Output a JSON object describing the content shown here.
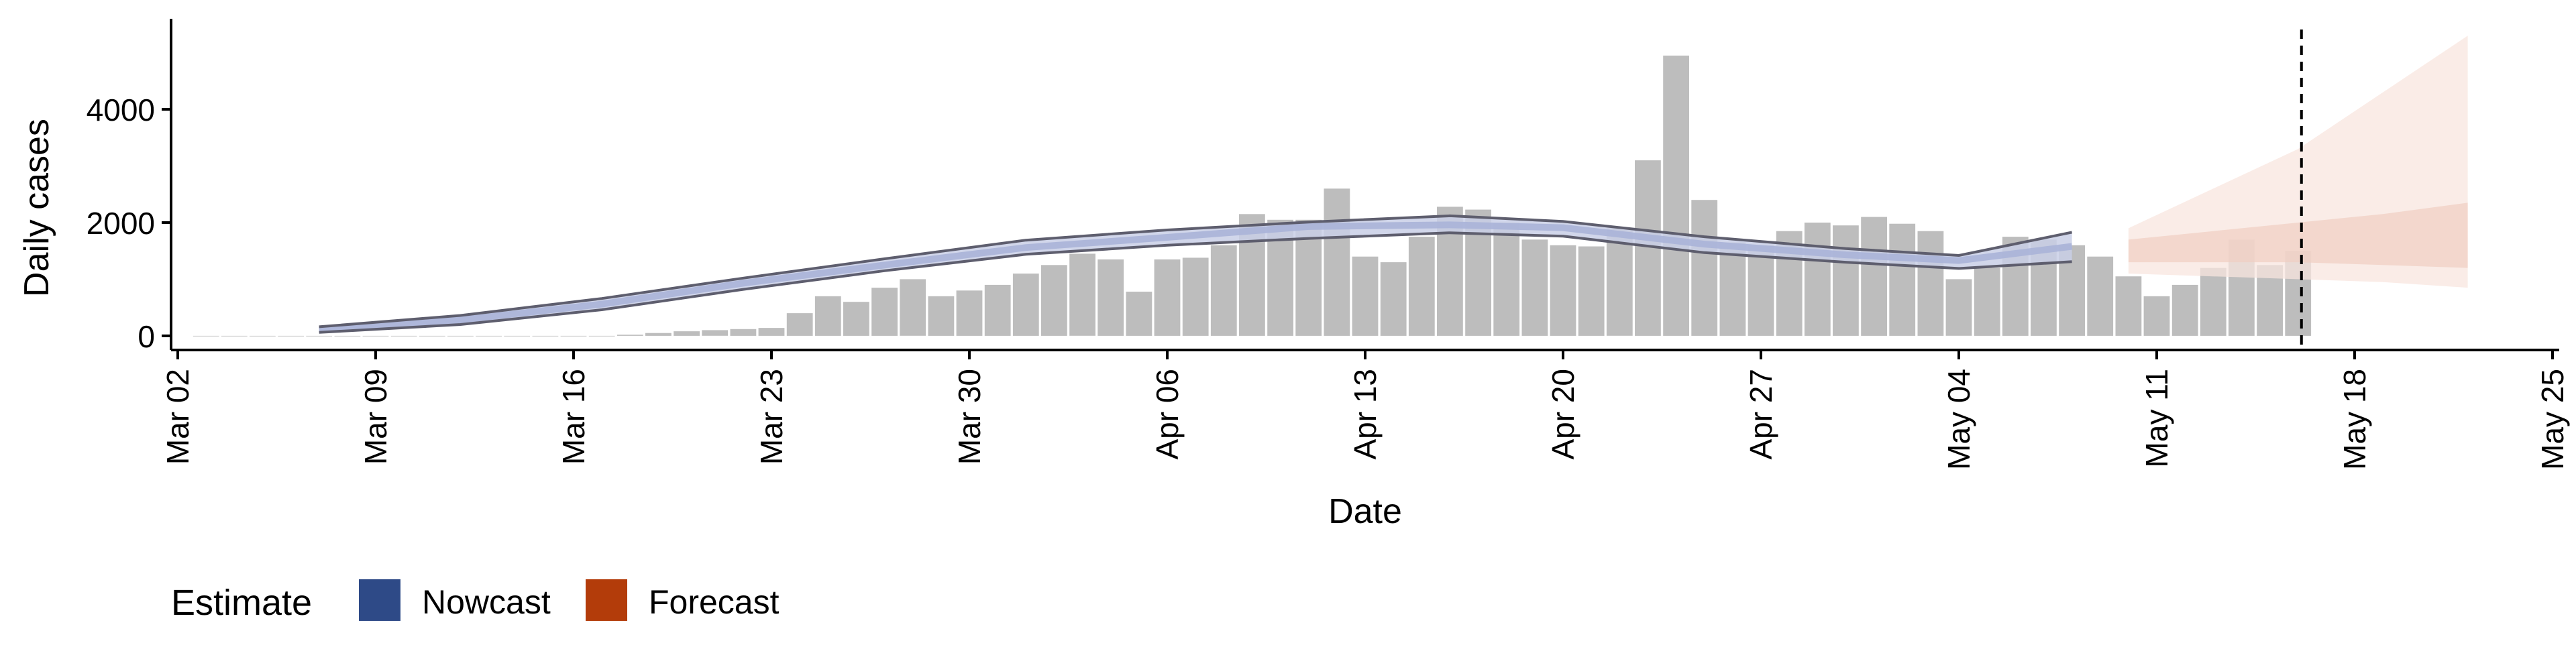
{
  "chart_data": {
    "type": "bar",
    "xlabel": "Date",
    "ylabel": "Daily cases",
    "x_ticks": [
      "Mar 02",
      "Mar 09",
      "Mar 16",
      "Mar 23",
      "Mar 30",
      "Apr 06",
      "Apr 13",
      "Apr 20",
      "Apr 27",
      "May 04",
      "May 11",
      "May 18",
      "May 25"
    ],
    "x_range": [
      "2020-03-02",
      "2020-05-25"
    ],
    "y_ticks": [
      0,
      2000,
      4000
    ],
    "ylim": [
      -250,
      5600
    ],
    "grid": false,
    "bars": {
      "dates": [
        "2020-03-03",
        "2020-03-04",
        "2020-03-05",
        "2020-03-06",
        "2020-03-07",
        "2020-03-08",
        "2020-03-09",
        "2020-03-10",
        "2020-03-11",
        "2020-03-12",
        "2020-03-13",
        "2020-03-14",
        "2020-03-15",
        "2020-03-16",
        "2020-03-17",
        "2020-03-18",
        "2020-03-19",
        "2020-03-20",
        "2020-03-21",
        "2020-03-22",
        "2020-03-23",
        "2020-03-24",
        "2020-03-25",
        "2020-03-26",
        "2020-03-27",
        "2020-03-28",
        "2020-03-29",
        "2020-03-30",
        "2020-03-31",
        "2020-04-01",
        "2020-04-02",
        "2020-04-03",
        "2020-04-04",
        "2020-04-05",
        "2020-04-06",
        "2020-04-07",
        "2020-04-08",
        "2020-04-09",
        "2020-04-10",
        "2020-04-11",
        "2020-04-12",
        "2020-04-13",
        "2020-04-14",
        "2020-04-15",
        "2020-04-16",
        "2020-04-17",
        "2020-04-18",
        "2020-04-19",
        "2020-04-20",
        "2020-04-21",
        "2020-04-22",
        "2020-04-23",
        "2020-04-24",
        "2020-04-25",
        "2020-04-26",
        "2020-04-27",
        "2020-04-28",
        "2020-04-29",
        "2020-04-30",
        "2020-05-01",
        "2020-05-02",
        "2020-05-03",
        "2020-05-04",
        "2020-05-05",
        "2020-05-06",
        "2020-05-07",
        "2020-05-08",
        "2020-05-09",
        "2020-05-10",
        "2020-05-11",
        "2020-05-12",
        "2020-05-13",
        "2020-05-14",
        "2020-05-15",
        "2020-05-16"
      ],
      "values": [
        0,
        0,
        0,
        0,
        0,
        0,
        0,
        0,
        0,
        0,
        0,
        0,
        0,
        0,
        0,
        20,
        50,
        80,
        100,
        120,
        140,
        400,
        700,
        600,
        850,
        1000,
        700,
        800,
        900,
        1100,
        1250,
        1450,
        1350,
        780,
        1350,
        1380,
        1600,
        2150,
        2050,
        2050,
        2600,
        1400,
        1300,
        1750,
        2280,
        2230,
        2000,
        1700,
        1600,
        1580,
        1900,
        3100,
        4950,
        2400,
        1650,
        1600,
        1850,
        2000,
        1950,
        2100,
        1980,
        1850,
        1000,
        1200,
        1750,
        1700,
        1600,
        1400,
        1050,
        700,
        900,
        1200,
        1700,
        1250,
        1500
      ]
    },
    "nowcast": {
      "dates": [
        "2020-03-07",
        "2020-03-12",
        "2020-03-17",
        "2020-03-22",
        "2020-03-27",
        "2020-04-01",
        "2020-04-06",
        "2020-04-11",
        "2020-04-16",
        "2020-04-20",
        "2020-04-25",
        "2020-04-30",
        "2020-05-04",
        "2020-05-08"
      ],
      "median": [
        100,
        280,
        560,
        930,
        1250,
        1560,
        1740,
        1930,
        1960,
        1910,
        1620,
        1430,
        1330,
        1580
      ],
      "lower_90": [
        60,
        200,
        460,
        820,
        1150,
        1440,
        1600,
        1720,
        1820,
        1760,
        1470,
        1300,
        1190,
        1310
      ],
      "upper_90": [
        160,
        360,
        660,
        1020,
        1360,
        1690,
        1870,
        2010,
        2120,
        2020,
        1750,
        1540,
        1420,
        1830
      ]
    },
    "forecast": {
      "dates": [
        "2020-05-10",
        "2020-05-13",
        "2020-05-16",
        "2020-05-19",
        "2020-05-22"
      ],
      "lower_90": [
        1100,
        1050,
        1000,
        950,
        850
      ],
      "lower_50": [
        1300,
        1300,
        1300,
        1250,
        1200
      ],
      "upper_50": [
        1700,
        1850,
        2000,
        2150,
        2350
      ],
      "upper_90": [
        1900,
        2600,
        3300,
        4300,
        5300
      ]
    },
    "forecast_start_marker": "2020-05-16",
    "legend": {
      "title": "Estimate",
      "position": "bottom-left",
      "items": [
        {
          "label": "Nowcast",
          "color": "#2e4a87"
        },
        {
          "label": "Forecast",
          "color": "#b33c0a"
        }
      ]
    },
    "colors": {
      "bars": "#bdbdbd",
      "nowcast_band": "#c9cfe6",
      "nowcast_band_inner": "#aab4d8",
      "nowcast_line": "#5e5e6e",
      "forecast_band_outer": "#f8e6df",
      "forecast_band_inner": "#efcfc2",
      "axis": "#000000"
    }
  }
}
